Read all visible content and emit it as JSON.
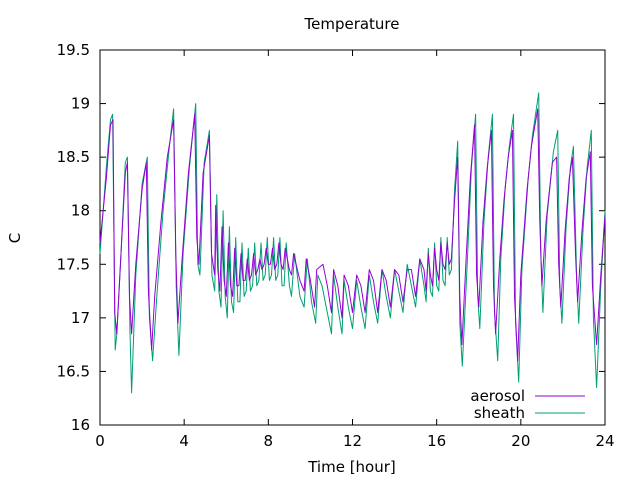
{
  "chart_data": {
    "type": "line",
    "title": "Temperature",
    "xlabel": "Time [hour]",
    "ylabel": "C",
    "xlim": [
      0,
      24
    ],
    "ylim": [
      16,
      19.5
    ],
    "xticks": [
      "0",
      "4",
      "8",
      "12",
      "16",
      "20",
      "24"
    ],
    "yticks": [
      "16",
      "16.5",
      "17",
      "17.5",
      "18",
      "18.5",
      "19",
      "19.5"
    ],
    "grid": false,
    "legend_position": "bottom-right",
    "series": [
      {
        "name": "aerosol",
        "color": "#9400d3",
        "points": [
          [
            0.0,
            17.7
          ],
          [
            0.3,
            18.3
          ],
          [
            0.5,
            18.8
          ],
          [
            0.62,
            18.85
          ],
          [
            0.7,
            17.05
          ],
          [
            0.8,
            16.85
          ],
          [
            1.0,
            17.6
          ],
          [
            1.2,
            18.35
          ],
          [
            1.3,
            18.45
          ],
          [
            1.4,
            17.2
          ],
          [
            1.5,
            16.85
          ],
          [
            1.7,
            17.5
          ],
          [
            2.0,
            18.2
          ],
          [
            2.2,
            18.45
          ],
          [
            2.3,
            17.25
          ],
          [
            2.45,
            16.7
          ],
          [
            2.6,
            17.2
          ],
          [
            2.9,
            17.9
          ],
          [
            3.2,
            18.5
          ],
          [
            3.5,
            18.85
          ],
          [
            3.6,
            17.6
          ],
          [
            3.7,
            16.95
          ],
          [
            3.9,
            17.55
          ],
          [
            4.2,
            18.35
          ],
          [
            4.5,
            18.9
          ],
          [
            4.6,
            17.75
          ],
          [
            4.7,
            17.5
          ],
          [
            4.9,
            18.35
          ],
          [
            5.2,
            18.7
          ],
          [
            5.3,
            17.6
          ],
          [
            5.45,
            17.4
          ],
          [
            5.5,
            18.05
          ],
          [
            5.6,
            17.45
          ],
          [
            5.7,
            17.25
          ],
          [
            5.8,
            17.85
          ],
          [
            5.9,
            17.35
          ],
          [
            6.0,
            17.2
          ],
          [
            6.1,
            17.7
          ],
          [
            6.2,
            17.3
          ],
          [
            6.3,
            17.2
          ],
          [
            6.4,
            17.65
          ],
          [
            6.5,
            17.3
          ],
          [
            6.6,
            17.3
          ],
          [
            6.7,
            17.6
          ],
          [
            6.8,
            17.35
          ],
          [
            6.9,
            17.35
          ],
          [
            7.0,
            17.55
          ],
          [
            7.1,
            17.35
          ],
          [
            7.2,
            17.4
          ],
          [
            7.3,
            17.6
          ],
          [
            7.4,
            17.4
          ],
          [
            7.5,
            17.45
          ],
          [
            7.6,
            17.55
          ],
          [
            7.7,
            17.45
          ],
          [
            7.8,
            17.5
          ],
          [
            7.9,
            17.65
          ],
          [
            8.0,
            17.5
          ],
          [
            8.1,
            17.5
          ],
          [
            8.2,
            17.65
          ],
          [
            8.3,
            17.45
          ],
          [
            8.4,
            17.5
          ],
          [
            8.5,
            17.7
          ],
          [
            8.6,
            17.5
          ],
          [
            8.7,
            17.45
          ],
          [
            8.8,
            17.65
          ],
          [
            9.0,
            17.45
          ],
          [
            9.1,
            17.4
          ],
          [
            9.2,
            17.6
          ],
          [
            9.5,
            17.35
          ],
          [
            9.7,
            17.25
          ],
          [
            9.8,
            17.55
          ],
          [
            10.0,
            17.35
          ],
          [
            10.2,
            17.1
          ],
          [
            10.3,
            17.45
          ],
          [
            10.6,
            17.5
          ],
          [
            10.8,
            17.3
          ],
          [
            11.0,
            17.05
          ],
          [
            11.1,
            17.45
          ],
          [
            11.3,
            17.3
          ],
          [
            11.5,
            17.0
          ],
          [
            11.6,
            17.4
          ],
          [
            11.8,
            17.3
          ],
          [
            12.0,
            17.05
          ],
          [
            12.2,
            17.4
          ],
          [
            12.4,
            17.3
          ],
          [
            12.6,
            17.05
          ],
          [
            12.8,
            17.45
          ],
          [
            13.0,
            17.35
          ],
          [
            13.2,
            17.05
          ],
          [
            13.4,
            17.45
          ],
          [
            13.6,
            17.35
          ],
          [
            13.8,
            17.1
          ],
          [
            14.0,
            17.45
          ],
          [
            14.2,
            17.4
          ],
          [
            14.4,
            17.15
          ],
          [
            14.6,
            17.45
          ],
          [
            14.8,
            17.45
          ],
          [
            15.0,
            17.2
          ],
          [
            15.2,
            17.55
          ],
          [
            15.4,
            17.45
          ],
          [
            15.5,
            17.25
          ],
          [
            15.6,
            17.6
          ],
          [
            15.7,
            17.4
          ],
          [
            15.8,
            17.3
          ],
          [
            15.9,
            17.65
          ],
          [
            16.0,
            17.45
          ],
          [
            16.1,
            17.35
          ],
          [
            16.2,
            17.7
          ],
          [
            16.3,
            17.5
          ],
          [
            16.4,
            17.45
          ],
          [
            16.5,
            17.7
          ],
          [
            16.6,
            17.5
          ],
          [
            16.7,
            17.55
          ],
          [
            16.85,
            18.1
          ],
          [
            17.0,
            18.5
          ],
          [
            17.1,
            17.2
          ],
          [
            17.2,
            16.75
          ],
          [
            17.4,
            17.55
          ],
          [
            17.6,
            18.3
          ],
          [
            17.8,
            18.8
          ],
          [
            17.9,
            17.4
          ],
          [
            18.0,
            17.1
          ],
          [
            18.2,
            17.9
          ],
          [
            18.4,
            18.4
          ],
          [
            18.6,
            18.75
          ],
          [
            18.7,
            17.3
          ],
          [
            18.8,
            16.85
          ],
          [
            19.0,
            17.55
          ],
          [
            19.2,
            18.1
          ],
          [
            19.4,
            18.5
          ],
          [
            19.6,
            18.75
          ],
          [
            19.7,
            17.2
          ],
          [
            19.85,
            16.6
          ],
          [
            20.0,
            17.4
          ],
          [
            20.3,
            18.2
          ],
          [
            20.5,
            18.6
          ],
          [
            20.8,
            18.95
          ],
          [
            20.9,
            17.9
          ],
          [
            21.0,
            17.3
          ],
          [
            21.2,
            17.9
          ],
          [
            21.5,
            18.45
          ],
          [
            21.7,
            18.5
          ],
          [
            21.8,
            17.5
          ],
          [
            21.9,
            17.1
          ],
          [
            22.1,
            17.8
          ],
          [
            22.3,
            18.3
          ],
          [
            22.45,
            18.5
          ],
          [
            22.6,
            17.6
          ],
          [
            22.7,
            17.15
          ],
          [
            22.9,
            17.8
          ],
          [
            23.1,
            18.3
          ],
          [
            23.3,
            18.55
          ],
          [
            23.4,
            17.3
          ],
          [
            23.6,
            16.75
          ],
          [
            23.8,
            17.4
          ],
          [
            24.0,
            17.95
          ]
        ]
      },
      {
        "name": "sheath",
        "color": "#009e73",
        "points": [
          [
            0.0,
            17.6
          ],
          [
            0.3,
            18.4
          ],
          [
            0.5,
            18.85
          ],
          [
            0.6,
            18.9
          ],
          [
            0.72,
            16.7
          ],
          [
            0.8,
            16.85
          ],
          [
            1.0,
            17.6
          ],
          [
            1.2,
            18.45
          ],
          [
            1.3,
            18.5
          ],
          [
            1.42,
            16.9
          ],
          [
            1.5,
            16.3
          ],
          [
            1.7,
            17.4
          ],
          [
            2.0,
            18.25
          ],
          [
            2.25,
            18.5
          ],
          [
            2.35,
            17.0
          ],
          [
            2.5,
            16.6
          ],
          [
            2.7,
            17.2
          ],
          [
            3.0,
            18.0
          ],
          [
            3.3,
            18.6
          ],
          [
            3.5,
            18.95
          ],
          [
            3.62,
            17.3
          ],
          [
            3.75,
            16.65
          ],
          [
            3.95,
            17.6
          ],
          [
            4.25,
            18.4
          ],
          [
            4.55,
            19.0
          ],
          [
            4.65,
            17.5
          ],
          [
            4.75,
            17.4
          ],
          [
            4.95,
            18.45
          ],
          [
            5.2,
            18.75
          ],
          [
            5.32,
            17.4
          ],
          [
            5.45,
            17.25
          ],
          [
            5.55,
            18.15
          ],
          [
            5.65,
            17.25
          ],
          [
            5.75,
            17.1
          ],
          [
            5.85,
            18.0
          ],
          [
            5.95,
            17.2
          ],
          [
            6.05,
            17.0
          ],
          [
            6.15,
            17.85
          ],
          [
            6.25,
            17.15
          ],
          [
            6.35,
            17.05
          ],
          [
            6.45,
            17.75
          ],
          [
            6.55,
            17.15
          ],
          [
            6.65,
            17.15
          ],
          [
            6.75,
            17.7
          ],
          [
            6.85,
            17.2
          ],
          [
            6.95,
            17.25
          ],
          [
            7.05,
            17.65
          ],
          [
            7.15,
            17.25
          ],
          [
            7.25,
            17.3
          ],
          [
            7.35,
            17.7
          ],
          [
            7.45,
            17.3
          ],
          [
            7.55,
            17.35
          ],
          [
            7.65,
            17.7
          ],
          [
            7.75,
            17.35
          ],
          [
            7.85,
            17.4
          ],
          [
            7.95,
            17.75
          ],
          [
            8.05,
            17.35
          ],
          [
            8.15,
            17.4
          ],
          [
            8.25,
            17.75
          ],
          [
            8.35,
            17.35
          ],
          [
            8.45,
            17.4
          ],
          [
            8.55,
            17.75
          ],
          [
            8.65,
            17.3
          ],
          [
            8.75,
            17.3
          ],
          [
            8.85,
            17.7
          ],
          [
            9.0,
            17.3
          ],
          [
            9.1,
            17.2
          ],
          [
            9.25,
            17.6
          ],
          [
            9.5,
            17.2
          ],
          [
            9.7,
            17.1
          ],
          [
            9.85,
            17.55
          ],
          [
            10.05,
            17.15
          ],
          [
            10.25,
            16.95
          ],
          [
            10.35,
            17.4
          ],
          [
            10.55,
            17.3
          ],
          [
            10.8,
            17.05
          ],
          [
            11.0,
            16.85
          ],
          [
            11.1,
            17.4
          ],
          [
            11.3,
            17.1
          ],
          [
            11.5,
            16.85
          ],
          [
            11.6,
            17.35
          ],
          [
            11.8,
            17.1
          ],
          [
            12.0,
            16.9
          ],
          [
            12.2,
            17.35
          ],
          [
            12.4,
            17.1
          ],
          [
            12.6,
            16.9
          ],
          [
            12.8,
            17.4
          ],
          [
            13.0,
            17.15
          ],
          [
            13.2,
            16.95
          ],
          [
            13.4,
            17.45
          ],
          [
            13.6,
            17.2
          ],
          [
            13.8,
            17.0
          ],
          [
            14.0,
            17.45
          ],
          [
            14.2,
            17.25
          ],
          [
            14.4,
            17.05
          ],
          [
            14.6,
            17.5
          ],
          [
            14.8,
            17.3
          ],
          [
            15.0,
            17.1
          ],
          [
            15.2,
            17.55
          ],
          [
            15.4,
            17.3
          ],
          [
            15.5,
            17.15
          ],
          [
            15.6,
            17.65
          ],
          [
            15.7,
            17.25
          ],
          [
            15.8,
            17.2
          ],
          [
            15.9,
            17.7
          ],
          [
            16.0,
            17.3
          ],
          [
            16.1,
            17.25
          ],
          [
            16.2,
            17.75
          ],
          [
            16.3,
            17.35
          ],
          [
            16.4,
            17.3
          ],
          [
            16.5,
            17.75
          ],
          [
            16.6,
            17.4
          ],
          [
            16.7,
            17.45
          ],
          [
            16.85,
            18.2
          ],
          [
            17.0,
            18.65
          ],
          [
            17.1,
            16.95
          ],
          [
            17.22,
            16.55
          ],
          [
            17.45,
            17.5
          ],
          [
            17.65,
            18.4
          ],
          [
            17.85,
            18.9
          ],
          [
            17.95,
            17.2
          ],
          [
            18.05,
            16.9
          ],
          [
            18.25,
            17.9
          ],
          [
            18.45,
            18.5
          ],
          [
            18.65,
            18.9
          ],
          [
            18.75,
            17.05
          ],
          [
            18.9,
            16.6
          ],
          [
            19.05,
            17.55
          ],
          [
            19.25,
            18.2
          ],
          [
            19.45,
            18.6
          ],
          [
            19.65,
            18.9
          ],
          [
            19.75,
            16.95
          ],
          [
            19.9,
            16.4
          ],
          [
            20.05,
            17.45
          ],
          [
            20.35,
            18.3
          ],
          [
            20.55,
            18.7
          ],
          [
            20.85,
            19.1
          ],
          [
            20.95,
            17.6
          ],
          [
            21.05,
            17.05
          ],
          [
            21.25,
            17.95
          ],
          [
            21.55,
            18.55
          ],
          [
            21.75,
            18.75
          ],
          [
            21.85,
            17.3
          ],
          [
            21.95,
            16.95
          ],
          [
            22.15,
            17.85
          ],
          [
            22.35,
            18.4
          ],
          [
            22.5,
            18.6
          ],
          [
            22.65,
            17.4
          ],
          [
            22.75,
            16.95
          ],
          [
            22.95,
            17.8
          ],
          [
            23.15,
            18.4
          ],
          [
            23.35,
            18.75
          ],
          [
            23.45,
            17.0
          ],
          [
            23.6,
            16.35
          ],
          [
            23.8,
            17.3
          ],
          [
            24.0,
            18.0
          ]
        ]
      }
    ]
  }
}
